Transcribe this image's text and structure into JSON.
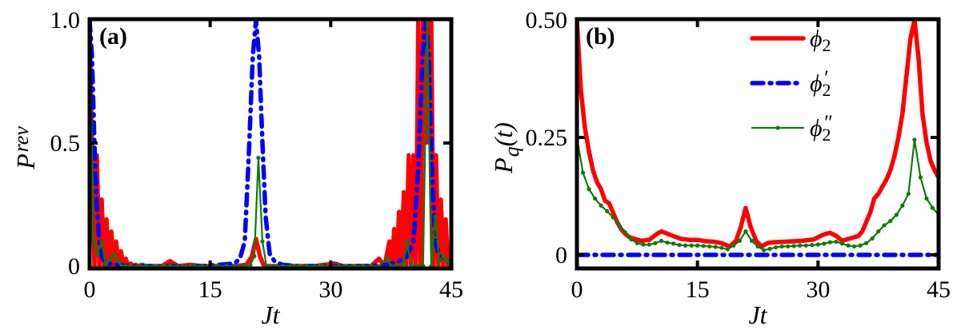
{
  "chart_data": [
    {
      "type": "line",
      "panel_label": "(a)",
      "title": "",
      "xlabel": "Jt",
      "ylabel_main": "P",
      "ylabel_sub": "rev",
      "xlim": [
        0,
        45
      ],
      "ylim": [
        0,
        1.0
      ],
      "xticks": [
        0,
        15,
        30,
        45
      ],
      "xtick_labels": [
        "0",
        "15",
        "30",
        "45"
      ],
      "yticks": [
        0,
        0.5,
        1.0
      ],
      "ytick_labels": [
        "0",
        "0.5",
        "1.0"
      ],
      "grid": false,
      "legend_position": "none",
      "series": [
        {
          "name": "phi_2",
          "color": "#ff0000",
          "style": "solid-thick",
          "x": [
            0,
            0.3,
            0.6,
            0.9,
            1.2,
            1.5,
            1.8,
            2.1,
            2.4,
            2.7,
            3.0,
            3.3,
            3.6,
            3.9,
            4.2,
            4.5,
            4.8,
            5.1,
            5.4,
            5.7,
            6.0,
            6.5,
            7.0,
            9.0,
            10.0,
            11.0,
            12.5,
            14.0,
            18.0,
            19.5,
            20.2,
            20.7,
            21.2,
            21.7,
            22.3,
            24.0,
            28.0,
            30.5,
            31.5,
            33.0,
            35.0,
            36.0,
            36.7,
            37.3,
            37.6,
            37.9,
            38.2,
            38.5,
            38.8,
            39.1,
            39.4,
            39.7,
            40.0,
            40.3,
            40.6,
            40.9,
            41.2,
            41.5,
            41.75,
            42.0,
            42.25,
            42.5,
            42.8,
            43.1,
            43.4,
            43.7,
            44.0,
            44.3,
            44.6,
            45.0
          ],
          "y": [
            1.0,
            0.45,
            0.0,
            0.45,
            0.0,
            0.27,
            0.0,
            0.19,
            0.0,
            0.14,
            0.0,
            0.1,
            0.0,
            0.06,
            0.0,
            0.03,
            0.0,
            0.01,
            0.0,
            0.005,
            0.0,
            0.005,
            0.0,
            0.0,
            0.02,
            0.0,
            0.005,
            0.0,
            0.0,
            0.005,
            0.04,
            0.11,
            0.04,
            0.0,
            0.0,
            0.0,
            0.0,
            0.01,
            0.0,
            0.0,
            0.0,
            0.03,
            0.0,
            0.1,
            0.0,
            0.15,
            0.0,
            0.22,
            0.0,
            0.3,
            0.0,
            0.45,
            0.0,
            0.45,
            0.0,
            1.0,
            0.0,
            1.0,
            0.5,
            1.0,
            0.5,
            1.0,
            0.0,
            0.45,
            0.0,
            0.27,
            0.0,
            0.19,
            0.0,
            0.02
          ]
        },
        {
          "name": "phi_2_prime",
          "color": "#0000ff",
          "style": "dashdot-thick",
          "x": [
            0,
            0.3,
            0.6,
            0.9,
            1.2,
            1.6,
            2.2,
            3.5,
            5.0,
            7.0,
            10.0,
            14.0,
            16.0,
            18.0,
            18.7,
            19.3,
            19.8,
            20.3,
            20.7,
            21.1,
            21.5,
            21.9,
            22.4,
            23.0,
            24.0,
            26.0,
            30.0,
            34.0,
            37.0,
            38.5,
            39.5,
            40.3,
            40.9,
            41.4,
            41.8,
            42.2,
            42.6,
            43.0,
            43.5,
            44.0,
            44.5,
            45.0
          ],
          "y": [
            1.0,
            0.85,
            0.5,
            0.25,
            0.1,
            0.03,
            0.01,
            0.005,
            0.0,
            0.0,
            0.0,
            0.0,
            0.005,
            0.01,
            0.03,
            0.1,
            0.45,
            0.85,
            1.0,
            0.85,
            0.5,
            0.2,
            0.05,
            0.02,
            0.005,
            0.0,
            0.0,
            0.0,
            0.005,
            0.02,
            0.04,
            0.1,
            0.4,
            0.85,
            1.0,
            0.85,
            0.4,
            0.1,
            0.04,
            0.03,
            0.02,
            0.01
          ]
        },
        {
          "name": "phi_2_double_prime",
          "color": "#0a7d0a",
          "style": "thin-with-markers",
          "x": [
            0,
            0.5,
            1.0,
            1.5,
            2.0,
            2.5,
            3.0,
            3.5,
            4.0,
            4.5,
            5.0,
            6.0,
            7.0,
            8.0,
            9.0,
            10.0,
            11.0,
            12.0,
            13.0,
            14.0,
            15.0,
            16.0,
            17.0,
            18.0,
            19.0,
            20.0,
            20.5,
            21.0,
            21.5,
            22.0,
            22.5,
            23.0,
            24.0,
            25.0,
            26.0,
            27.0,
            28.0,
            29.0,
            30.0,
            31.0,
            32.0,
            33.0,
            34.0,
            35.0,
            36.0,
            37.0,
            37.5,
            38.0,
            38.5,
            39.0,
            39.5,
            40.0,
            40.5,
            41.0,
            41.5,
            42.0,
            42.5,
            43.0,
            43.5,
            44.0,
            44.5,
            45.0
          ],
          "y": [
            1.0,
            0.1,
            0.05,
            0.1,
            0.0,
            0.03,
            0.05,
            0.02,
            0.0,
            0.0,
            0.0,
            0.0,
            0.0,
            0.0,
            0.0,
            0.0,
            0.0,
            0.0,
            0.0,
            0.0,
            0.0,
            0.0,
            0.0,
            0.0,
            0.0,
            0.005,
            0.04,
            0.44,
            0.1,
            0.0,
            0.0,
            0.0,
            0.0,
            0.0,
            0.0,
            0.0,
            0.0,
            0.0,
            0.0,
            0.0,
            0.0,
            0.0,
            0.0,
            0.0,
            0.0,
            0.03,
            0.0,
            0.0,
            0.0,
            0.01,
            0.1,
            0.0,
            0.0,
            0.0,
            0.0,
            1.0,
            0.0,
            0.2,
            0.02,
            0.04,
            0.02,
            0.0
          ]
        }
      ]
    },
    {
      "type": "line",
      "panel_label": "(b)",
      "title": "",
      "xlabel": "Jt",
      "ylabel_main": "P",
      "ylabel_sub": "q",
      "ylabel_suffix": "(t)",
      "xlim": [
        0,
        45
      ],
      "ylim": [
        -0.03,
        0.5
      ],
      "xticks": [
        0,
        15,
        30,
        45
      ],
      "xtick_labels": [
        "0",
        "15",
        "30",
        "45"
      ],
      "yticks": [
        0,
        0.25,
        0.5
      ],
      "ytick_labels": [
        "0",
        "0.25",
        "0.50"
      ],
      "grid": false,
      "legend_position": "upper right",
      "legend": [
        {
          "label": "ϕ",
          "sub": "2",
          "prime": "",
          "color": "#ff0000",
          "style": "solid-thick"
        },
        {
          "label": "ϕ",
          "sub": "2",
          "prime": "′",
          "color": "#0000ff",
          "style": "dashdot-thick"
        },
        {
          "label": "ϕ",
          "sub": "2",
          "prime": "″",
          "color": "#0a7d0a",
          "style": "thin-with-markers"
        }
      ],
      "series": [
        {
          "name": "phi_2",
          "color": "#ff0000",
          "style": "solid-thick",
          "x": [
            0,
            0.5,
            1.0,
            1.5,
            2.0,
            2.5,
            3.0,
            3.5,
            4.0,
            4.5,
            5.0,
            5.5,
            6.0,
            6.5,
            7.0,
            8.0,
            9.0,
            10.0,
            10.5,
            11.0,
            12.0,
            13.0,
            14.0,
            15.0,
            16.0,
            17.0,
            18.0,
            19.0,
            19.8,
            20.4,
            21.0,
            21.6,
            22.3,
            23.0,
            23.7,
            24.5,
            26.0,
            28.0,
            29.5,
            30.5,
            31.0,
            31.5,
            32.3,
            33.0,
            34.0,
            35.0,
            35.5,
            36.0,
            36.5,
            37.0,
            37.5,
            38.0,
            38.5,
            39.0,
            39.5,
            40.0,
            40.5,
            41.0,
            41.5,
            42.0,
            42.5,
            43.0,
            43.5,
            44.0,
            44.5,
            45.0
          ],
          "y": [
            0.5,
            0.35,
            0.27,
            0.22,
            0.18,
            0.155,
            0.14,
            0.115,
            0.11,
            0.09,
            0.07,
            0.055,
            0.045,
            0.038,
            0.035,
            0.03,
            0.032,
            0.045,
            0.05,
            0.047,
            0.04,
            0.034,
            0.032,
            0.032,
            0.029,
            0.028,
            0.025,
            0.018,
            0.03,
            0.06,
            0.1,
            0.06,
            0.03,
            0.018,
            0.025,
            0.027,
            0.028,
            0.03,
            0.033,
            0.042,
            0.045,
            0.047,
            0.04,
            0.03,
            0.035,
            0.04,
            0.05,
            0.07,
            0.09,
            0.12,
            0.13,
            0.145,
            0.16,
            0.18,
            0.21,
            0.25,
            0.3,
            0.38,
            0.46,
            0.5,
            0.42,
            0.3,
            0.24,
            0.2,
            0.18,
            0.165
          ]
        },
        {
          "name": "phi_2_prime",
          "color": "#0000ff",
          "style": "dashdot-thick",
          "x": [
            0,
            45
          ],
          "y": [
            0.0,
            0.0
          ]
        },
        {
          "name": "phi_2_double_prime",
          "color": "#0a7d0a",
          "style": "thin-with-markers",
          "x": [
            0,
            0.75,
            1.5,
            2.25,
            3.0,
            3.75,
            4.5,
            5.25,
            6.0,
            6.75,
            7.5,
            8.25,
            9.0,
            9.75,
            10.5,
            11.25,
            12.0,
            12.75,
            13.5,
            14.25,
            15.0,
            15.75,
            16.5,
            17.25,
            18.0,
            18.75,
            19.5,
            20.25,
            21.0,
            21.75,
            22.5,
            23.25,
            24.0,
            24.75,
            25.5,
            26.25,
            27.0,
            27.75,
            28.5,
            29.25,
            30.0,
            30.75,
            31.5,
            32.25,
            33.0,
            33.75,
            34.5,
            35.25,
            36.0,
            36.75,
            37.5,
            38.25,
            39.0,
            39.75,
            40.5,
            41.25,
            42.0,
            42.75,
            43.5,
            44.25,
            45.0
          ],
          "y": [
            0.25,
            0.175,
            0.14,
            0.12,
            0.105,
            0.093,
            0.08,
            0.063,
            0.048,
            0.033,
            0.025,
            0.022,
            0.022,
            0.025,
            0.03,
            0.026,
            0.024,
            0.021,
            0.02,
            0.02,
            0.02,
            0.019,
            0.018,
            0.017,
            0.015,
            0.012,
            0.02,
            0.03,
            0.05,
            0.03,
            0.018,
            0.01,
            0.013,
            0.016,
            0.018,
            0.018,
            0.019,
            0.02,
            0.02,
            0.021,
            0.022,
            0.024,
            0.027,
            0.028,
            0.024,
            0.02,
            0.018,
            0.02,
            0.025,
            0.035,
            0.05,
            0.063,
            0.072,
            0.085,
            0.105,
            0.13,
            0.245,
            0.165,
            0.12,
            0.1,
            0.085
          ]
        }
      ]
    }
  ]
}
